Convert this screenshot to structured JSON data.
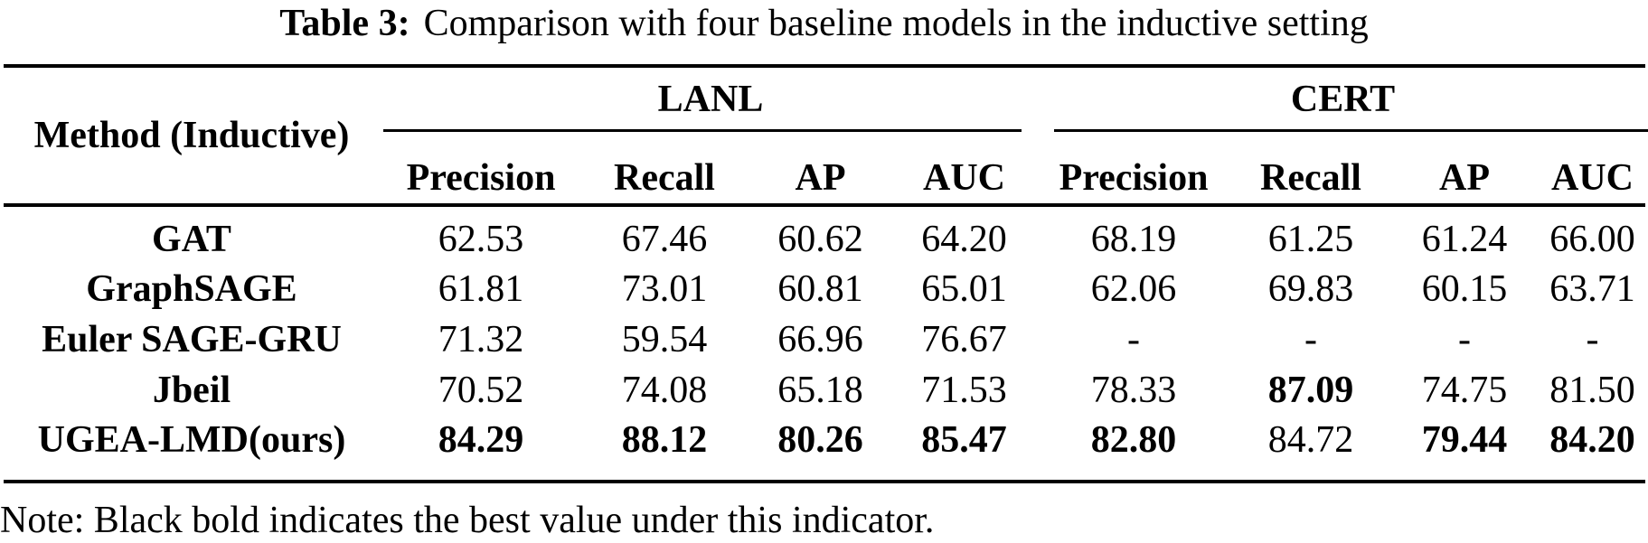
{
  "title": {
    "label": "Table 3:",
    "text": "Comparison with four baseline models in the inductive setting"
  },
  "table": {
    "method_header": "Method (Inductive)",
    "groups": {
      "lanl": "LANL",
      "cert": "CERT"
    },
    "metric_headers": [
      "Precision",
      "Recall",
      "AP",
      "AUC",
      "Precision",
      "Recall",
      "AP",
      "AUC"
    ],
    "rows": [
      {
        "method": "GAT",
        "values": [
          "62.53",
          "67.46",
          "60.62",
          "64.20",
          "68.19",
          "61.25",
          "61.24",
          "66.00"
        ],
        "bold": [
          0,
          0,
          0,
          0,
          0,
          0,
          0,
          0
        ]
      },
      {
        "method": "GraphSAGE",
        "values": [
          "61.81",
          "73.01",
          "60.81",
          "65.01",
          "62.06",
          "69.83",
          "60.15",
          "63.71"
        ],
        "bold": [
          0,
          0,
          0,
          0,
          0,
          0,
          0,
          0
        ]
      },
      {
        "method": "Euler SAGE-GRU",
        "values": [
          "71.32",
          "59.54",
          "66.96",
          "76.67",
          "-",
          "-",
          "-",
          "-"
        ],
        "bold": [
          0,
          0,
          0,
          0,
          0,
          0,
          0,
          0
        ]
      },
      {
        "method": "Jbeil",
        "values": [
          "70.52",
          "74.08",
          "65.18",
          "71.53",
          "78.33",
          "87.09",
          "74.75",
          "81.50"
        ],
        "bold": [
          0,
          0,
          0,
          0,
          0,
          1,
          0,
          0
        ]
      },
      {
        "method": "UGEA-LMD(ours)",
        "values": [
          "84.29",
          "88.12",
          "80.26",
          "85.47",
          "82.80",
          "84.72",
          "79.44",
          "84.20"
        ],
        "bold": [
          1,
          1,
          1,
          1,
          1,
          0,
          1,
          1
        ]
      }
    ]
  },
  "note": "Note: Black bold indicates the best value under this indicator."
}
